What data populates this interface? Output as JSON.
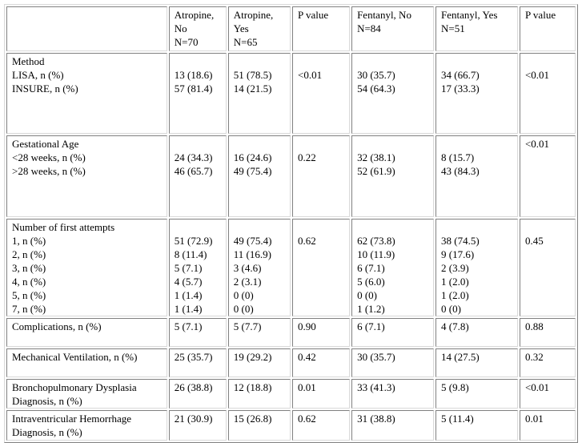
{
  "columns": [
    "",
    "Atropine,\nNo\nN=70",
    "Atropine,\nYes\nN=65",
    "P value",
    "Fentanyl, No\nN=84",
    "Fentanyl, Yes\nN=51",
    "P value"
  ],
  "rows": [
    {
      "id": "method",
      "cells": [
        "Method\nLISA, n (%)\nINSURE, n (%)",
        "\n13 (18.6)\n57 (81.4)",
        "\n51 (78.5)\n14 (21.5)",
        "\n<0.01",
        "\n30 (35.7)\n54 (64.3)",
        "\n34 (66.7)\n17 (33.3)",
        "\n<0.01"
      ]
    },
    {
      "id": "gestational-age",
      "cells": [
        "Gestational Age\n<28 weeks, n (%)\n>28 weeks, n (%)",
        "\n24 (34.3)\n46 (65.7)",
        "\n16 (24.6)\n49 (75.4)",
        "\n0.22",
        "\n32 (38.1)\n52 (61.9)",
        "\n8 (15.7)\n43 (84.3)",
        "<0.01"
      ]
    },
    {
      "id": "first-attempts",
      "cells": [
        "Number of first attempts\n1, n (%)\n2, n (%)\n3, n (%)\n4, n (%)\n5, n (%)\n7, n (%)",
        "\n51 (72.9)\n8 (11.4)\n5 (7.1)\n4 (5.7)\n1 (1.4)\n1 (1.4)",
        "\n49 (75.4)\n11 (16.9)\n3 (4.6)\n2 (3.1)\n0 (0)\n0 (0)",
        "\n0.62",
        "\n62 (73.8)\n10 (11.9)\n6 (7.1)\n5 (6.0)\n0 (0)\n1 (1.2)",
        "\n38 (74.5)\n9 (17.6)\n2 (3.9)\n1 (2.0)\n1 (2.0)\n0 (0)",
        "\n0.45"
      ]
    },
    {
      "id": "complications",
      "cells": [
        "Complications, n (%)",
        "5 (7.1)",
        "5 (7.7)",
        "0.90",
        "6 (7.1)",
        "4 (7.8)",
        "0.88"
      ]
    },
    {
      "id": "mechanical-ventilation",
      "cells": [
        "Mechanical Ventilation, n (%)",
        "25 (35.7)",
        "19 (29.2)",
        "0.42",
        "30 (35.7)",
        "14 (27.5)",
        "0.32"
      ]
    },
    {
      "id": "bpd",
      "cells": [
        "Bronchopulmonary Dysplasia\nDiagnosis, n (%)",
        "26 (38.8)",
        "12 (18.8)",
        "0.01",
        "33 (41.3)",
        "5 (9.8)",
        "<0.01"
      ]
    },
    {
      "id": "ivh",
      "cells": [
        "Intraventricular Hemorrhage\nDiagnosis, n (%)",
        "21 (30.9)",
        "15 (26.8)",
        "0.62",
        "31 (38.8)",
        "5 (11.4)",
        "0.01"
      ]
    }
  ]
}
